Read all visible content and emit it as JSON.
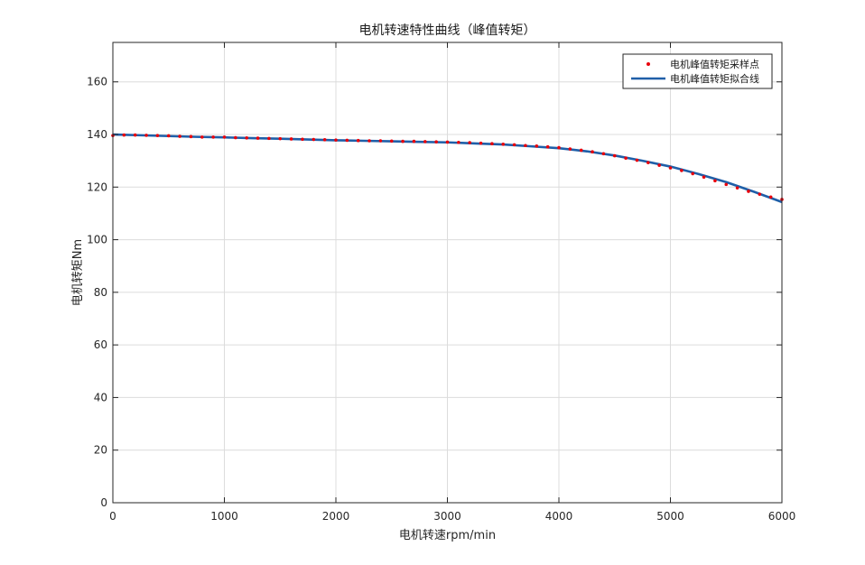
{
  "chart_data": {
    "type": "scatter",
    "title": "电机转速特性曲线（峰值转矩）",
    "xlabel": "电机转速rpm/min",
    "ylabel": "电机转矩Nm",
    "xlim": [
      0,
      6000
    ],
    "ylim": [
      0,
      175
    ],
    "xticks": [
      0,
      1000,
      2000,
      3000,
      4000,
      5000,
      6000
    ],
    "yticks": [
      0,
      20,
      40,
      60,
      80,
      100,
      120,
      140,
      160
    ],
    "grid": true,
    "legend_position": "top-right",
    "series": [
      {
        "name": "电机峰值转矩采样点",
        "kind": "points",
        "color": "#e8000b",
        "x": [
          0,
          100,
          200,
          300,
          400,
          500,
          600,
          700,
          800,
          900,
          1000,
          1100,
          1200,
          1300,
          1400,
          1500,
          1600,
          1700,
          1800,
          1900,
          2000,
          2100,
          2200,
          2300,
          2400,
          2500,
          2600,
          2700,
          2800,
          2900,
          3000,
          3100,
          3200,
          3300,
          3400,
          3500,
          3600,
          3700,
          3800,
          3900,
          4000,
          4100,
          4200,
          4300,
          4400,
          4500,
          4600,
          4700,
          4800,
          4900,
          5000,
          5100,
          5200,
          5300,
          5400,
          5500,
          5600,
          5700,
          5800,
          5900,
          6000
        ],
        "y": [
          139.6,
          139.8,
          139.8,
          139.7,
          139.6,
          139.5,
          139.3,
          139.2,
          139.0,
          139.0,
          139.0,
          138.8,
          138.7,
          138.6,
          138.5,
          138.4,
          138.3,
          138.2,
          138.1,
          138.0,
          137.9,
          137.8,
          137.7,
          137.6,
          137.6,
          137.5,
          137.4,
          137.4,
          137.3,
          137.2,
          137.1,
          137.0,
          136.9,
          136.7,
          136.5,
          136.3,
          136.1,
          135.8,
          135.6,
          135.3,
          135.0,
          134.5,
          134.0,
          133.4,
          132.7,
          131.9,
          131.0,
          130.2,
          129.3,
          128.3,
          127.3,
          126.3,
          125.1,
          123.8,
          122.4,
          121.0,
          119.7,
          118.4,
          117.3,
          116.2,
          115.3
        ]
      },
      {
        "name": "电机峰值转矩拟合线",
        "kind": "line",
        "color": "#1f5fa8",
        "x": [
          0,
          250,
          500,
          750,
          1000,
          1250,
          1500,
          1750,
          2000,
          2250,
          2500,
          2750,
          3000,
          3250,
          3500,
          3750,
          4000,
          4250,
          4500,
          4750,
          5000,
          5250,
          5500,
          5750,
          6000
        ],
        "y": [
          140.0,
          139.7,
          139.4,
          139.1,
          138.9,
          138.6,
          138.4,
          138.1,
          137.8,
          137.6,
          137.4,
          137.2,
          137.0,
          136.6,
          136.2,
          135.5,
          134.8,
          133.6,
          132.0,
          130.0,
          127.8,
          125.0,
          121.9,
          118.2,
          114.3
        ]
      }
    ]
  }
}
